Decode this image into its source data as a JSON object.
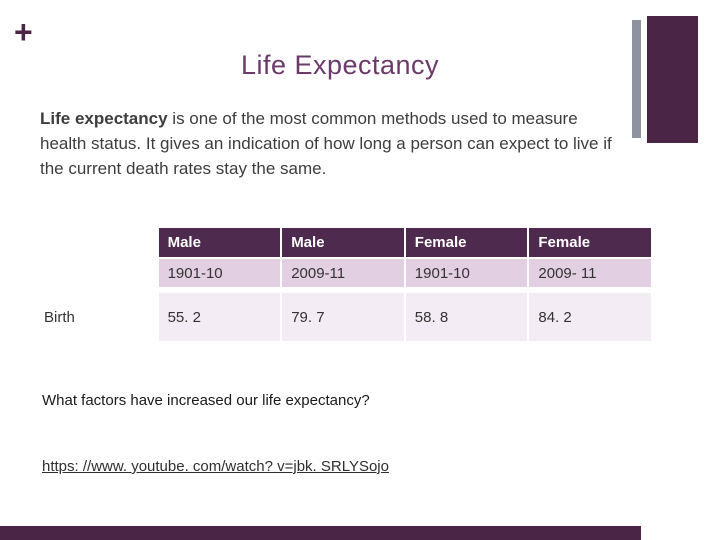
{
  "decor": {
    "plus": "+"
  },
  "header": {
    "title": "Life Expectancy"
  },
  "intro": {
    "bold": "Life expectancy",
    "rest": " is one of the most common methods used to measure health status. It gives an indication of how long a person can expect to live if the current death rates stay the same."
  },
  "table": {
    "col_headers": [
      "Male",
      "Male",
      "Female",
      "Female"
    ],
    "period_row": [
      "1901-10",
      "2009-11",
      "1901-10",
      "2009- 11"
    ],
    "row_label": "Birth",
    "values": [
      "55. 2",
      "79. 7",
      "58. 8",
      "84. 2"
    ]
  },
  "question": "What factors have increased our life expectancy?",
  "link": {
    "url_text": "https: //www. youtube. com/watch? v=jbk. SRLYSojo"
  },
  "colors": {
    "accent_dark": "#4b2545",
    "title_purple": "#6b3a6b",
    "table_header_bg": "#4e2a4e",
    "row_light_bg": "#e2cfe2",
    "row_lighter_bg": "#f4ecf4",
    "side_gray": "#8f93a0"
  },
  "chart_data": {
    "type": "table",
    "title": "Life Expectancy",
    "columns": [
      "",
      "Male 1901-10",
      "Male 2009-11",
      "Female 1901-10",
      "Female 2009-11"
    ],
    "rows": [
      [
        "Birth",
        55.2,
        79.7,
        58.8,
        84.2
      ]
    ]
  }
}
